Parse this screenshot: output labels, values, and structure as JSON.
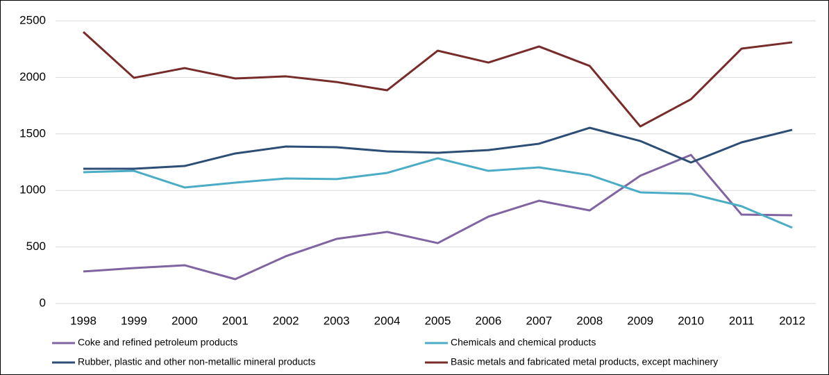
{
  "chart_data": {
    "type": "line",
    "categories": [
      "1998",
      "1999",
      "2000",
      "2001",
      "2002",
      "2003",
      "2004",
      "2005",
      "2006",
      "2007",
      "2008",
      "2009",
      "2010",
      "2011",
      "2012"
    ],
    "series": [
      {
        "name": "Coke and refined petroleum products",
        "color": "#8064a2",
        "values": [
          283,
          313,
          338,
          215,
          418,
          571,
          633,
          534,
          768,
          909,
          823,
          1130,
          1314,
          786,
          780
        ]
      },
      {
        "name": "Chemicals and chemical products",
        "color": "#4bacc6",
        "values": [
          1161,
          1173,
          1026,
          1069,
          1106,
          1100,
          1155,
          1284,
          1173,
          1204,
          1136,
          983,
          970,
          860,
          670
        ]
      },
      {
        "name": "Rubber, plastic and other non-metallic mineral products",
        "color": "#2c4d75",
        "values": [
          1192,
          1192,
          1216,
          1327,
          1388,
          1382,
          1345,
          1333,
          1357,
          1413,
          1554,
          1437,
          1247,
          1425,
          1536
        ]
      },
      {
        "name": "Basic metals and fabricated metal products, except machinery",
        "color": "#772c2a",
        "values": [
          2402,
          1996,
          2082,
          1990,
          2009,
          1959,
          1886,
          2236,
          2131,
          2273,
          2101,
          1566,
          1806,
          2254,
          2310
        ]
      }
    ],
    "ylim": [
      0,
      2500
    ],
    "yticks": [
      0,
      500,
      1000,
      1500,
      2000,
      2500
    ],
    "grid": true,
    "legend": "bottom"
  }
}
